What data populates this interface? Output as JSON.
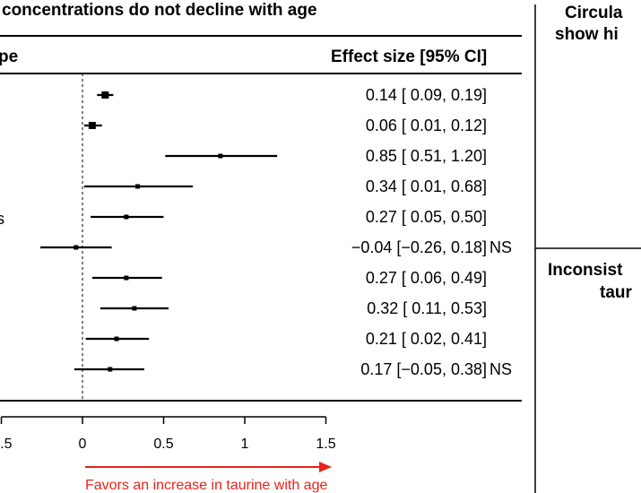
{
  "header": {
    "title": "concentrations do not decline with age",
    "left_column_header": "pe",
    "effect_column_header": "Effect size [95% CI]",
    "left_cut_label": "s"
  },
  "right_panel": {
    "top_title_line1": "Circula",
    "top_title_line2": "show hi",
    "bottom_title_line1": "Inconsist",
    "bottom_title_line2": "taur"
  },
  "chart_data": {
    "type": "forest",
    "xlim": [
      -0.5,
      1.5
    ],
    "reference_line": 0,
    "ticks": [
      {
        "value": -0.5,
        "label": ".5"
      },
      {
        "value": 0,
        "label": "0"
      },
      {
        "value": 0.5,
        "label": "0.5"
      },
      {
        "value": 1,
        "label": "1"
      },
      {
        "value": 1.5,
        "label": "1.5"
      }
    ],
    "rows": [
      {
        "est": 0.14,
        "lo": 0.09,
        "hi": 0.19,
        "weight": 3,
        "label": "0.14 [ 0.09, 0.19]"
      },
      {
        "est": 0.06,
        "lo": 0.01,
        "hi": 0.12,
        "weight": 3,
        "label": "0.06 [ 0.01, 0.12]"
      },
      {
        "est": 0.85,
        "lo": 0.51,
        "hi": 1.2,
        "weight": 1,
        "label": "0.85 [ 0.51, 1.20]"
      },
      {
        "est": 0.34,
        "lo": 0.01,
        "hi": 0.68,
        "weight": 1,
        "label": "0.34 [ 0.01, 0.68]"
      },
      {
        "est": 0.27,
        "lo": 0.05,
        "hi": 0.5,
        "weight": 1,
        "label": "0.27 [ 0.05, 0.50]"
      },
      {
        "est": -0.04,
        "lo": -0.26,
        "hi": 0.18,
        "weight": 1,
        "label": "−0.04 [−0.26, 0.18] NS"
      },
      {
        "est": 0.27,
        "lo": 0.06,
        "hi": 0.49,
        "weight": 1,
        "label": "0.27 [ 0.06, 0.49]"
      },
      {
        "est": 0.32,
        "lo": 0.11,
        "hi": 0.53,
        "weight": 1,
        "label": "0.32 [ 0.11, 0.53]"
      },
      {
        "est": 0.21,
        "lo": 0.02,
        "hi": 0.41,
        "weight": 1,
        "label": "0.21 [ 0.02, 0.41]"
      },
      {
        "est": 0.17,
        "lo": -0.05,
        "hi": 0.38,
        "weight": 1,
        "label": "0.17 [−0.05, 0.38] NS"
      }
    ],
    "annotation": "Favors an increase in taurine with age",
    "annotation_color": "#e8221b"
  }
}
